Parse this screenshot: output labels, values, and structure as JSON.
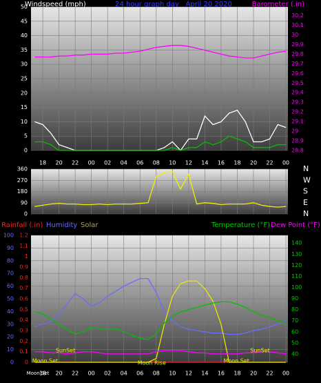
{
  "chart_data": [
    {
      "type": "line",
      "title": "24 hour graph day   April 20 2020",
      "ylabel": "Windspeed (mph)",
      "y2label": "Barometer (.in)",
      "x": [
        17,
        18,
        19,
        20,
        21,
        22,
        23,
        24,
        25,
        26,
        27,
        28,
        29,
        30,
        31,
        32,
        33,
        34,
        35,
        36,
        37,
        38,
        39,
        40,
        41,
        42,
        43,
        44,
        45,
        46,
        47,
        48
      ],
      "xlim": [
        16.55,
        48.25
      ],
      "xticks": [
        18,
        20,
        22,
        {
          "value": 24,
          "label": "00"
        },
        {
          "value": 26,
          "label": "02"
        },
        {
          "value": 28,
          "label": "04"
        },
        {
          "value": 30,
          "label": "06"
        },
        {
          "value": 32,
          "label": "08"
        },
        {
          "value": 34,
          "label": "10"
        },
        {
          "value": 36,
          "label": "12"
        },
        {
          "value": 38,
          "label": "14"
        },
        {
          "value": 40,
          "label": "16"
        },
        {
          "value": 42,
          "label": "18"
        },
        {
          "value": 44,
          "label": "20"
        },
        {
          "value": 46,
          "label": "22"
        },
        {
          "value": 48,
          "label": "00"
        }
      ],
      "ylim": [
        0,
        50
      ],
      "yticks": [
        0,
        5,
        10,
        15,
        20,
        25,
        30,
        35,
        40,
        45,
        50
      ],
      "y2lim": [
        28.8,
        30.29
      ],
      "y2ticks": [
        28.8,
        28.9,
        29,
        29.1,
        29.2,
        29.3,
        29.4,
        29.5,
        29.6,
        29.7,
        29.8,
        29.9,
        30,
        30.1,
        30.2
      ],
      "grid": true,
      "series": [
        {
          "color": "#ffffff",
          "values": [
            10,
            9,
            6,
            2,
            1,
            0,
            0,
            0,
            0,
            0,
            0,
            0,
            0,
            0,
            0,
            0,
            1,
            3,
            0,
            4,
            4,
            12,
            9,
            10,
            13,
            14,
            10,
            3,
            3,
            4,
            9,
            8
          ]
        },
        {
          "color": "#00c000",
          "values": [
            3,
            3,
            2,
            0,
            0,
            0,
            0,
            0,
            0,
            0,
            0,
            0,
            0,
            0,
            0,
            0,
            0,
            1,
            0,
            1,
            1,
            3,
            2,
            3,
            5,
            4,
            3,
            1,
            1,
            1,
            2,
            2
          ]
        },
        {
          "color": "#ff00ff",
          "axis": "y2",
          "values": [
            29.77,
            29.77,
            29.77,
            29.78,
            29.78,
            29.79,
            29.79,
            29.8,
            29.8,
            29.8,
            29.81,
            29.81,
            29.82,
            29.83,
            29.85,
            29.87,
            29.88,
            29.89,
            29.89,
            29.88,
            29.86,
            29.84,
            29.82,
            29.8,
            29.78,
            29.77,
            29.76,
            29.76,
            29.78,
            29.8,
            29.82,
            29.83
          ]
        }
      ]
    },
    {
      "type": "line",
      "x": [
        17,
        18,
        19,
        20,
        21,
        22,
        23,
        24,
        25,
        26,
        27,
        28,
        29,
        30,
        31,
        32,
        33,
        34,
        35,
        36,
        37,
        38,
        39,
        40,
        41,
        42,
        43,
        44,
        45,
        46,
        47,
        48
      ],
      "xlim": [
        16.55,
        48.25
      ],
      "xticks": [
        18,
        20,
        22,
        24,
        26,
        28,
        30,
        32,
        34,
        36,
        38,
        40,
        42,
        44,
        46,
        48
      ],
      "show_xtick_labels": false,
      "ylim": [
        0,
        360
      ],
      "yticks": [
        0,
        90,
        180,
        270,
        360
      ],
      "compass": [
        "N",
        "W",
        "S",
        "E",
        "N"
      ],
      "grid": true,
      "series": [
        {
          "color": "#f0f000",
          "values": [
            60,
            70,
            80,
            85,
            80,
            80,
            75,
            75,
            80,
            75,
            80,
            80,
            80,
            85,
            90,
            300,
            330,
            340,
            200,
            320,
            80,
            90,
            85,
            75,
            80,
            80,
            80,
            90,
            70,
            60,
            55,
            60
          ]
        }
      ]
    },
    {
      "type": "line",
      "x": [
        17,
        18,
        19,
        20,
        21,
        22,
        23,
        24,
        25,
        26,
        27,
        28,
        29,
        30,
        31,
        32,
        33,
        34,
        35,
        36,
        37,
        38,
        39,
        40,
        41,
        42,
        43,
        44,
        45,
        46,
        47,
        48
      ],
      "xlim": [
        16.55,
        48.25
      ],
      "xticks": [
        18,
        20,
        22,
        {
          "value": 24,
          "label": "00"
        },
        {
          "value": 26,
          "label": "02"
        },
        {
          "value": 28,
          "label": "04"
        },
        {
          "value": 30,
          "label": "06"
        },
        {
          "value": 32,
          "label": "08"
        },
        {
          "value": 34,
          "label": "10"
        },
        {
          "value": 36,
          "label": "12"
        },
        {
          "value": 38,
          "label": "14"
        },
        {
          "value": 40,
          "label": "16"
        },
        {
          "value": 42,
          "label": "18"
        },
        {
          "value": 44,
          "label": "20"
        },
        {
          "value": 46,
          "label": "22"
        },
        {
          "value": 48,
          "label": "00"
        }
      ],
      "ylim": [
        0,
        100
      ],
      "yticks": [
        0,
        10,
        20,
        30,
        40,
        50,
        60,
        70,
        80,
        90,
        100
      ],
      "y3lim": [
        0,
        1.2
      ],
      "y3ticks": [
        0,
        0.1,
        0.2,
        0.3,
        0.4,
        0.5,
        0.6,
        0.7,
        0.8,
        0.9,
        1,
        1.1,
        1.2
      ],
      "y2lim": [
        32.5,
        147
      ],
      "y2ticks": [
        40,
        50,
        60,
        70,
        80,
        90,
        100,
        110,
        120,
        130,
        140
      ],
      "grid": true,
      "series": [
        {
          "name": "Rainfall (.in)",
          "color": "#ff2020",
          "axis": "y3",
          "values": [
            0,
            0,
            0,
            0,
            0,
            0,
            0,
            0,
            0,
            0,
            0,
            0,
            0,
            0,
            0,
            0,
            0,
            0,
            0,
            0,
            0,
            0,
            0,
            0,
            0,
            0,
            0,
            0,
            0,
            0,
            0,
            0
          ]
        },
        {
          "name": "Humidity",
          "color": "#6a6aff",
          "values": [
            28,
            30,
            32,
            38,
            46,
            54,
            50,
            44,
            47,
            52,
            56,
            60,
            63,
            66,
            66,
            55,
            40,
            33,
            28,
            26,
            25,
            24,
            23,
            23,
            22,
            22,
            23,
            25,
            26,
            28,
            30,
            33
          ]
        },
        {
          "name": "Solar",
          "color": "#e8e800",
          "values": [
            0,
            0,
            0,
            0,
            0,
            0,
            0,
            0,
            0,
            0,
            0,
            0,
            0,
            0,
            0,
            3,
            30,
            52,
            62,
            64,
            64,
            58,
            48,
            30,
            0,
            0,
            0,
            0,
            0,
            0,
            0,
            0
          ]
        },
        {
          "name": "Temperature (°F)",
          "color": "#00c000",
          "axis": "y2",
          "values": [
            78,
            76,
            72,
            67,
            62,
            58,
            60,
            64,
            63,
            62,
            63,
            60,
            57,
            54,
            53,
            58,
            68,
            74,
            78,
            80,
            82,
            84,
            86,
            87,
            87,
            85,
            82,
            78,
            75,
            73,
            70,
            68
          ]
        },
        {
          "name": "Dew Point (°F)",
          "color": "#ff00ff",
          "axis": "y2",
          "values": [
            42,
            42,
            41,
            41,
            40,
            41,
            42,
            42,
            41,
            40,
            40,
            40,
            40,
            40,
            40,
            42,
            43,
            43,
            43,
            42,
            41,
            41,
            40,
            40,
            40,
            40,
            41,
            41,
            42,
            42,
            41,
            40
          ]
        }
      ],
      "annotations": [
        {
          "text": "SunSet",
          "x": 19.6
        },
        {
          "text": "SunSet",
          "x": 43.6
        },
        {
          "text": "Moon Set",
          "x": 16.7
        },
        {
          "text": "Moon Set",
          "x": 40.3
        },
        {
          "text": "Moon Rise",
          "x": 29.7
        }
      ],
      "xlabel_note": {
        "text": "Moon Set",
        "x": 17.4
      }
    }
  ]
}
